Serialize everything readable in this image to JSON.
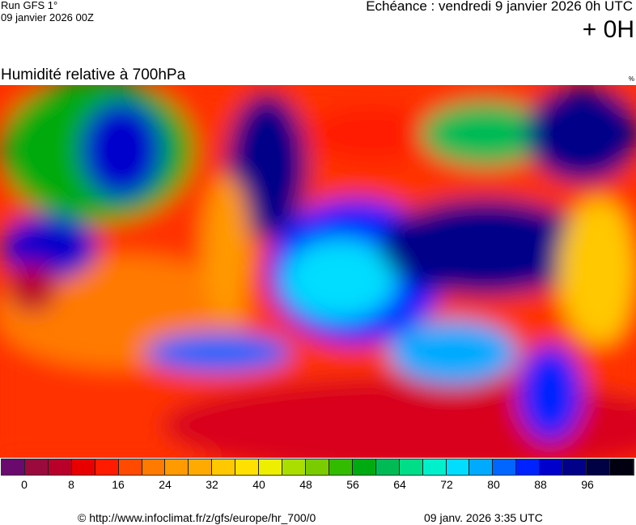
{
  "header": {
    "run": "Run GFS 1°",
    "run_date": "09 janvier 2026 00Z",
    "echeance": "Echéance : vendredi 9 janvier 2026 0h UTC",
    "lead": "+ 0H"
  },
  "map": {
    "title": "Humidité relative à 700hPa",
    "unit": "%"
  },
  "legend": {
    "ticks": [
      "0",
      "8",
      "16",
      "24",
      "32",
      "40",
      "48",
      "56",
      "64",
      "72",
      "80",
      "88",
      "96"
    ],
    "colors": [
      "#6a0a6e",
      "#9a0a3c",
      "#b8002a",
      "#e80000",
      "#ff1a00",
      "#ff4a00",
      "#ff7a00",
      "#ff9a00",
      "#ffaa00",
      "#ffc800",
      "#ffe000",
      "#eeee00",
      "#aade00",
      "#7acc00",
      "#33bb00",
      "#00aa11",
      "#00bb55",
      "#00dd88",
      "#00f0cc",
      "#00ddff",
      "#00aaff",
      "#0066ff",
      "#0022ff",
      "#0000cc",
      "#000088",
      "#000044",
      "#000010"
    ]
  },
  "footer": {
    "copyright": "© http://www.infoclimat.fr/z/gfs/europe/hr_700/0",
    "generated": "09 janv. 2026  3:35 UTC"
  }
}
